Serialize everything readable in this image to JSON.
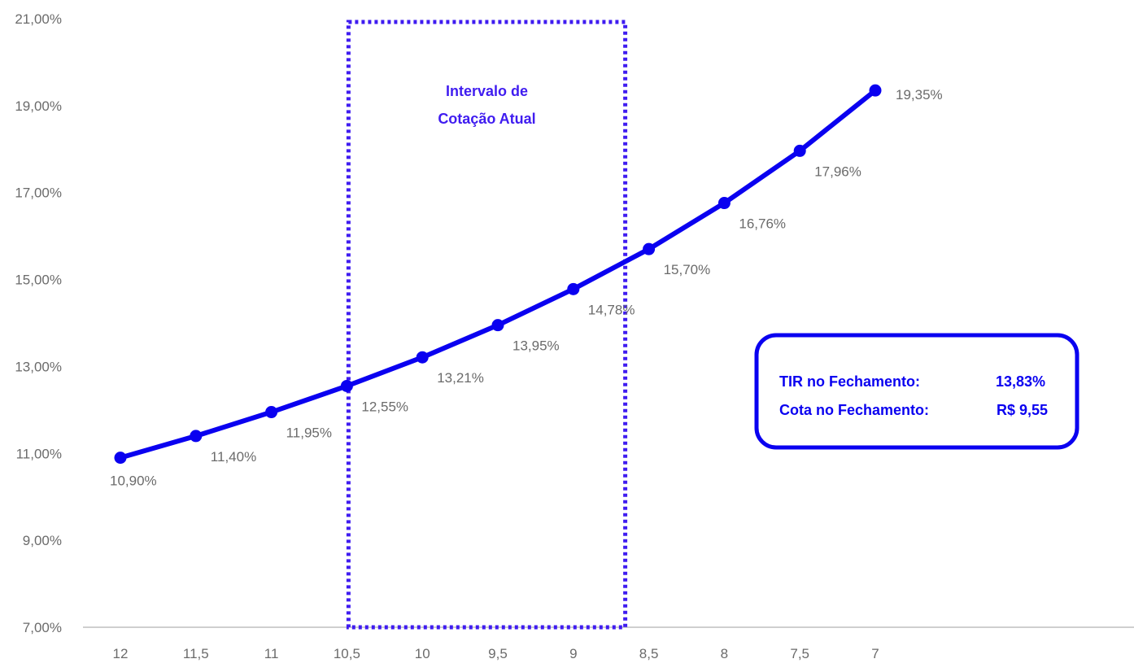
{
  "chart_data": {
    "type": "line",
    "title": "",
    "xlabel": "",
    "ylabel": "",
    "x": [
      "12",
      "11,5",
      "11",
      "10,5",
      "10",
      "9,5",
      "9",
      "8,5",
      "8",
      "7,5",
      "7"
    ],
    "series": [
      {
        "values": [
          10.9,
          11.4,
          11.95,
          12.55,
          13.21,
          13.95,
          14.78,
          15.7,
          16.76,
          17.96,
          19.35
        ],
        "labels": [
          "10,90%",
          "11,40%",
          "11,95%",
          "12,55%",
          "13,21%",
          "13,95%",
          "14,78%",
          "15,70%",
          "16,76%",
          "17,96%",
          "19,35%"
        ]
      }
    ],
    "ylim": [
      7,
      21
    ],
    "y_ticks": [
      7,
      9,
      11,
      13,
      15,
      17,
      19,
      21
    ],
    "y_tick_labels": [
      "7,00%",
      "9,00%",
      "11,00%",
      "13,00%",
      "15,00%",
      "17,00%",
      "19,00%",
      "21,00%"
    ],
    "grid": false,
    "annotations": {
      "interval_box": {
        "lines": [
          "Intervalo de",
          "Cotação Atual"
        ],
        "x_from": 10.5,
        "x_to": 8.5
      },
      "info_box": {
        "line1_label": "TIR no Fechamento:",
        "line1_value": "13,83%",
        "line2_label": "Cota no Fechamento:",
        "line2_value": "R$ 9,55"
      }
    },
    "colors": {
      "line": "#0a00f0",
      "annotation": "#3f1cf0",
      "axis": "#bfbfbf",
      "tick_text": "#6b6b6b"
    }
  }
}
